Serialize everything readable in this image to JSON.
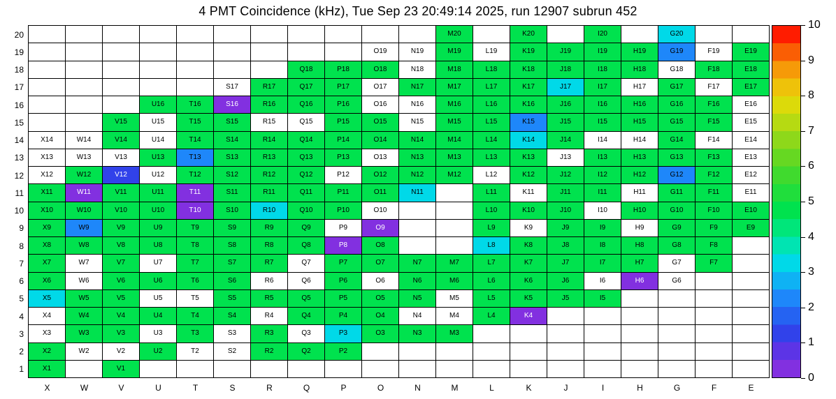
{
  "chart_data": {
    "type": "heatmap",
    "title": "4 PMT Coincidence (kHz), Tue Sep 23 20:49:14 2025, run 12907 subrun 452",
    "x_categories": [
      "X",
      "W",
      "V",
      "U",
      "T",
      "S",
      "R",
      "Q",
      "P",
      "O",
      "N",
      "M",
      "L",
      "K",
      "J",
      "I",
      "H",
      "G",
      "F",
      "E"
    ],
    "y_categories": [
      "20",
      "19",
      "18",
      "17",
      "16",
      "15",
      "14",
      "13",
      "12",
      "11",
      "10",
      "9",
      "8",
      "7",
      "6",
      "5",
      "4",
      "3",
      "2",
      "1"
    ],
    "scale": {
      "min": 0,
      "max": 10,
      "ticks": [
        "0",
        "1",
        "2",
        "3",
        "4",
        "5",
        "6",
        "7",
        "8",
        "9",
        "10"
      ]
    },
    "palette": {
      "g": {
        "name": "green",
        "hex": "#00e24e",
        "approx_value": 5.0
      },
      "c": {
        "name": "cyan",
        "hex": "#00d9e8",
        "approx_value": 3.4
      },
      "b": {
        "name": "blue",
        "hex": "#1e87fa",
        "approx_value": 2.3
      },
      "d": {
        "name": "dark-blue",
        "hex": "#3142ea",
        "approx_value": 1.3
      },
      "p": {
        "name": "violet",
        "hex": "#8230e0",
        "approx_value": 0.4
      },
      "w": {
        "name": "white-zero",
        "hex": "#ffffff",
        "approx_value": 0.0
      }
    },
    "rows": [
      {
        "y": "20",
        "cells": [
          "",
          "",
          "",
          "",
          "",
          "",
          "",
          "",
          "",
          "",
          "",
          "M20:g",
          "",
          "K20:g",
          "",
          "I20:g",
          "",
          "G20:c",
          "",
          ""
        ]
      },
      {
        "y": "19",
        "cells": [
          "",
          "",
          "",
          "",
          "",
          "",
          "",
          "",
          "",
          "O19:w",
          "N19:w",
          "M19:g",
          "L19:w",
          "K19:g",
          "J19:g",
          "I19:g",
          "H19:g",
          "G19:b",
          "F19:w",
          "E19:g"
        ]
      },
      {
        "y": "18",
        "cells": [
          "",
          "",
          "",
          "",
          "",
          "",
          "",
          "Q18:g",
          "P18:g",
          "O18:g",
          "N18:w",
          "M18:g",
          "L18:g",
          "K18:g",
          "J18:g",
          "I18:g",
          "H18:g",
          "G18:w",
          "F18:g",
          "E18:g"
        ]
      },
      {
        "y": "17",
        "cells": [
          "",
          "",
          "",
          "",
          "",
          "S17:w",
          "R17:g",
          "Q17:g",
          "P17:g",
          "O17:w",
          "N17:g",
          "M17:g",
          "L17:g",
          "K17:g",
          "J17:c",
          "I17:g",
          "H17:w",
          "G17:g",
          "F17:w",
          "E17:g"
        ]
      },
      {
        "y": "16",
        "cells": [
          "",
          "",
          "",
          "U16:g",
          "T16:g",
          "S16:p",
          "R16:g",
          "Q16:g",
          "P16:g",
          "O16:w",
          "N16:w",
          "M16:g",
          "L16:g",
          "K16:g",
          "J16:g",
          "I16:g",
          "H16:g",
          "G16:g",
          "F16:g",
          "E16:w"
        ]
      },
      {
        "y": "15",
        "cells": [
          "",
          "",
          "V15:g",
          "U15:w",
          "T15:g",
          "S15:g",
          "R15:w",
          "Q15:w",
          "P15:g",
          "O15:g",
          "N15:w",
          "M15:g",
          "L15:g",
          "K15:b",
          "J15:g",
          "I15:g",
          "H15:g",
          "G15:g",
          "F15:g",
          "E15:w"
        ]
      },
      {
        "y": "14",
        "cells": [
          "X14:w",
          "W14:w",
          "V14:g",
          "U14:w",
          "T14:g",
          "S14:g",
          "R14:g",
          "Q14:g",
          "P14:g",
          "O14:g",
          "N14:g",
          "M14:g",
          "L14:g",
          "K14:c",
          "J14:g",
          "I14:w",
          "H14:w",
          "G14:g",
          "F14:w",
          "E14:w"
        ]
      },
      {
        "y": "13",
        "cells": [
          "X13:w",
          "W13:w",
          "V13:w",
          "U13:g",
          "T13:b",
          "S13:g",
          "R13:g",
          "Q13:g",
          "P13:g",
          "O13:w",
          "N13:g",
          "M13:g",
          "L13:g",
          "K13:g",
          "J13:w",
          "I13:g",
          "H13:g",
          "G13:g",
          "F13:g",
          "E13:w"
        ]
      },
      {
        "y": "12",
        "cells": [
          "X12:w",
          "W12:g",
          "V12:d",
          "U12:w",
          "T12:g",
          "S12:g",
          "R12:g",
          "Q12:g",
          "P12:w",
          "O12:g",
          "N12:g",
          "M12:g",
          "L12:w",
          "K12:g",
          "J12:g",
          "I12:g",
          "H12:g",
          "G12:b",
          "F12:g",
          "E12:w"
        ]
      },
      {
        "y": "11",
        "cells": [
          "X11:g",
          "W11:p",
          "V11:g",
          "U11:g",
          "T11:p",
          "S11:g",
          "R11:g",
          "Q11:g",
          "P11:g",
          "O11:g",
          "N11:c",
          "",
          "L11:g",
          "K11:w",
          "J11:g",
          "I11:g",
          "H11:w",
          "G11:g",
          "F11:g",
          "E11:w"
        ]
      },
      {
        "y": "10",
        "cells": [
          "X10:g",
          "W10:g",
          "V10:g",
          "U10:g",
          "T10:p",
          "S10:g",
          "R10:c",
          "Q10:g",
          "P10:g",
          "O10:w",
          "",
          "",
          "L10:g",
          "K10:g",
          "J10:g",
          "I10:w",
          "H10:g",
          "G10:g",
          "F10:g",
          "E10:g"
        ]
      },
      {
        "y": "9",
        "cells": [
          "X9:g",
          "W9:b",
          "V9:g",
          "U9:g",
          "T9:g",
          "S9:g",
          "R9:g",
          "Q9:g",
          "P9:w",
          "O9:p",
          "",
          "",
          "L9:g",
          "K9:w",
          "J9:g",
          "I9:g",
          "H9:w",
          "G9:g",
          "F9:g",
          "E9:g"
        ]
      },
      {
        "y": "8",
        "cells": [
          "X8:g",
          "W8:g",
          "V8:g",
          "U8:g",
          "T8:g",
          "S8:g",
          "R8:g",
          "Q8:g",
          "P8:p",
          "O8:g",
          "",
          "",
          "L8:c",
          "K8:g",
          "J8:g",
          "I8:g",
          "H8:g",
          "G8:g",
          "F8:g",
          ""
        ]
      },
      {
        "y": "7",
        "cells": [
          "X7:g",
          "W7:w",
          "V7:g",
          "U7:w",
          "T7:g",
          "S7:g",
          "R7:g",
          "Q7:w",
          "P7:g",
          "O7:g",
          "N7:g",
          "M7:g",
          "L7:g",
          "K7:g",
          "J7:g",
          "I7:g",
          "H7:g",
          "G7:w",
          "F7:g",
          ""
        ]
      },
      {
        "y": "6",
        "cells": [
          "X6:g",
          "W6:w",
          "V6:g",
          "U6:g",
          "T6:g",
          "S6:g",
          "R6:w",
          "Q6:w",
          "P6:g",
          "O6:w",
          "N6:g",
          "M6:g",
          "L6:g",
          "K6:g",
          "J6:g",
          "I6:w",
          "H6:p",
          "G6:w",
          "",
          ""
        ]
      },
      {
        "y": "5",
        "cells": [
          "X5:c",
          "W5:g",
          "V5:g",
          "U5:w",
          "T5:w",
          "S5:g",
          "R5:g",
          "Q5:g",
          "P5:g",
          "O5:g",
          "N5:g",
          "M5:w",
          "L5:g",
          "K5:g",
          "J5:g",
          "I5:g",
          "",
          "",
          "",
          ""
        ]
      },
      {
        "y": "4",
        "cells": [
          "X4:w",
          "W4:g",
          "V4:g",
          "U4:g",
          "T4:g",
          "S4:g",
          "R4:w",
          "Q4:g",
          "P4:g",
          "O4:g",
          "N4:w",
          "M4:w",
          "L4:g",
          "K4:p",
          "",
          "",
          "",
          "",
          "",
          ""
        ]
      },
      {
        "y": "3",
        "cells": [
          "X3:w",
          "W3:g",
          "V3:g",
          "U3:w",
          "T3:g",
          "S3:w",
          "R3:g",
          "Q3:w",
          "P3:c",
          "O3:g",
          "N3:g",
          "M3:g",
          "",
          "",
          "",
          "",
          "",
          "",
          "",
          ""
        ]
      },
      {
        "y": "2",
        "cells": [
          "X2:g",
          "W2:w",
          "V2:w",
          "U2:g",
          "T2:w",
          "S2:w",
          "R2:g",
          "Q2:g",
          "P2:g",
          "",
          "",
          "",
          "",
          "",
          "",
          "",
          "",
          "",
          "",
          ""
        ]
      },
      {
        "y": "1",
        "cells": [
          "X1:g",
          "",
          "V1:g",
          "",
          "",
          "",
          "",
          "",
          "",
          "",
          "",
          "",
          "",
          "",
          "",
          "",
          "",
          "",
          "",
          ""
        ]
      }
    ]
  },
  "colorbar": {
    "min": 0,
    "max": 10,
    "tick_labels": [
      "0",
      "1",
      "2",
      "3",
      "4",
      "5",
      "6",
      "7",
      "8",
      "9",
      "10"
    ],
    "bands_bottom_to_top": [
      "#8230e0",
      "#5c34e6",
      "#3142ea",
      "#2563f2",
      "#1e87fa",
      "#0fb2f4",
      "#00d9e8",
      "#00e4b2",
      "#00e67a",
      "#00e24e",
      "#20de3c",
      "#40da2e",
      "#66d822",
      "#8ed81a",
      "#b6da12",
      "#dcda0a",
      "#eec20a",
      "#f69a08",
      "#fa5e04",
      "#ff1c00"
    ]
  }
}
